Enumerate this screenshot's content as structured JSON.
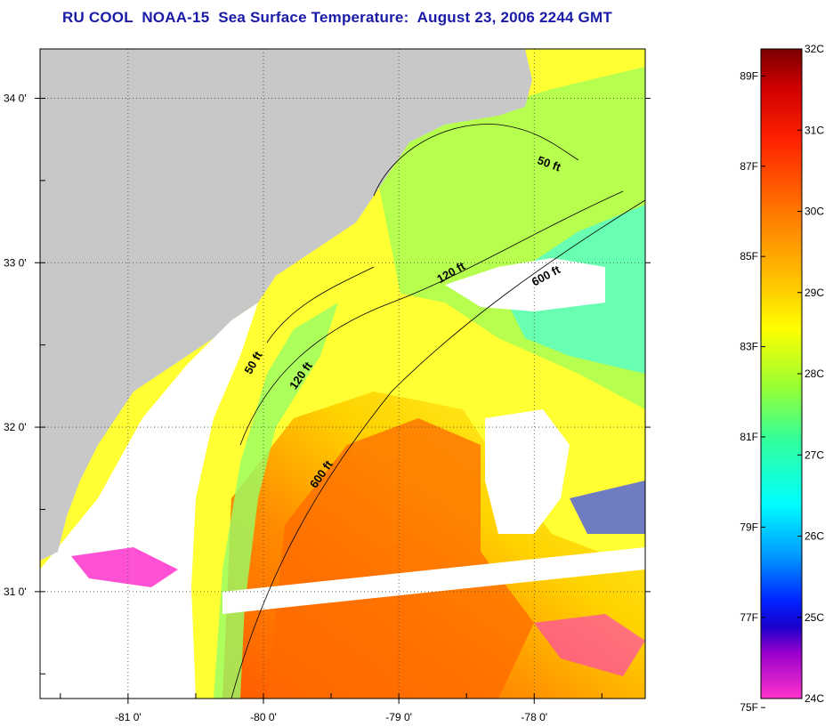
{
  "title": "RU COOL  NOAA-15  Sea Surface Temperature:  August 23, 2006 2244 GMT",
  "map": {
    "lat_ticks": [
      {
        "value": 34.0,
        "label": "34 0'"
      },
      {
        "value": 33.0,
        "label": "33 0'"
      },
      {
        "value": 32.0,
        "label": "32 0'"
      },
      {
        "value": 31.0,
        "label": "31 0'"
      }
    ],
    "lon_ticks": [
      {
        "value": -81.0,
        "label": "-81 0'"
      },
      {
        "value": -80.0,
        "label": "-80 0'"
      },
      {
        "value": -79.0,
        "label": "-79 0'"
      },
      {
        "value": -78.0,
        "label": "-78 0'"
      }
    ],
    "contour_labels": [
      {
        "text": "50 ft",
        "lon": -77.9,
        "lat": 33.58,
        "rotation": 20
      },
      {
        "text": "120 ft",
        "lon": -78.6,
        "lat": 32.92,
        "rotation": -30
      },
      {
        "text": "600 ft",
        "lon": -77.9,
        "lat": 32.9,
        "rotation": -28
      },
      {
        "text": "50 ft",
        "lon": -80.05,
        "lat": 32.38,
        "rotation": -60
      },
      {
        "text": "120 ft",
        "lon": -79.7,
        "lat": 32.3,
        "rotation": -55
      },
      {
        "text": "600 ft",
        "lon": -79.55,
        "lat": 31.7,
        "rotation": -55
      }
    ],
    "colors": {
      "land": "#c8c8c8",
      "no_data": "#ffffff",
      "grid": "#555555"
    }
  },
  "colorbar": {
    "celsius_labels": [
      "32C",
      "31C",
      "30C",
      "29C",
      "28C",
      "27C",
      "26C",
      "25C",
      "24C"
    ],
    "fahrenheit_labels": [
      "89F",
      "87F",
      "85F",
      "83F",
      "81F",
      "79F",
      "77F",
      "75F"
    ],
    "fahrenheit_values": [
      89,
      87,
      85,
      83,
      81,
      79,
      77,
      75
    ],
    "range_c": [
      24,
      32
    ],
    "stops": [
      {
        "t": 0.0,
        "color": "#7a0000"
      },
      {
        "t": 0.06,
        "color": "#d00000"
      },
      {
        "t": 0.14,
        "color": "#ff2200"
      },
      {
        "t": 0.25,
        "color": "#ff7700"
      },
      {
        "t": 0.37,
        "color": "#ffcc00"
      },
      {
        "t": 0.43,
        "color": "#ffff00"
      },
      {
        "t": 0.52,
        "color": "#99ff33"
      },
      {
        "t": 0.6,
        "color": "#33ff99"
      },
      {
        "t": 0.7,
        "color": "#00ffff"
      },
      {
        "t": 0.78,
        "color": "#0099ff"
      },
      {
        "t": 0.85,
        "color": "#0022ff"
      },
      {
        "t": 0.89,
        "color": "#1a00cc"
      },
      {
        "t": 0.93,
        "color": "#9900cc"
      },
      {
        "t": 1.0,
        "color": "#ff33cc"
      }
    ]
  }
}
